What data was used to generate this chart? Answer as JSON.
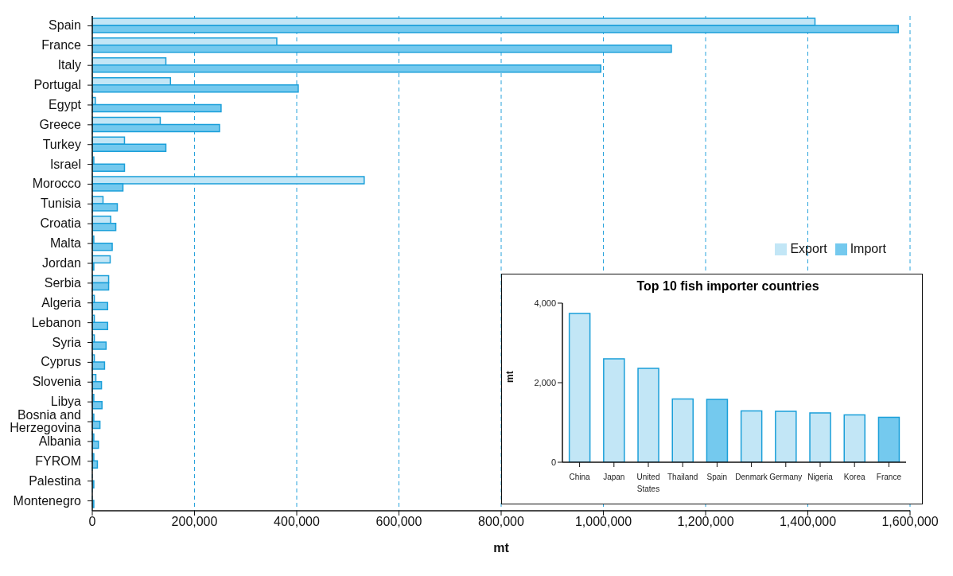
{
  "chart_data": [
    {
      "type": "bar",
      "orientation": "horizontal",
      "xlabel": "mt",
      "categories": [
        "Spain",
        "France",
        "Italy",
        "Portugal",
        "Egypt",
        "Greece",
        "Turkey",
        "Israel",
        "Morocco",
        "Tunisia",
        "Croatia",
        "Malta",
        "Jordan",
        "Serbia",
        "Algeria",
        "Lebanon",
        "Syria",
        "Cyprus",
        "Slovenia",
        "Libya",
        "Bosnia and Herzegovina",
        "Albania",
        "FYROM",
        "Palestina",
        "Montenegro"
      ],
      "series": [
        {
          "name": "Export",
          "color": "#c2e6f6",
          "values": [
            1414000,
            361000,
            144000,
            153000,
            6000,
            133000,
            63000,
            3000,
            532000,
            21000,
            36000,
            3000,
            35000,
            32000,
            4000,
            4000,
            4000,
            4000,
            7000,
            3000,
            3000,
            3000,
            3000,
            null,
            null
          ]
        },
        {
          "name": "Import",
          "color": "#74c9ee",
          "values": [
            1577000,
            1133000,
            995000,
            403000,
            252000,
            249000,
            144000,
            63000,
            60000,
            49000,
            46000,
            39000,
            3000,
            32000,
            30000,
            30000,
            27000,
            24000,
            18000,
            19000,
            15000,
            12000,
            10000,
            3000,
            3000
          ]
        }
      ],
      "xlim": [
        0,
        1600000
      ],
      "xticks": [
        0,
        {
          "value": 200000,
          "label": "200,000"
        },
        {
          "value": 400000,
          "label": "400,000"
        },
        {
          "value": 600000,
          "label": "600,000"
        },
        {
          "value": 800000,
          "label": "800,000"
        },
        {
          "value": 1000000,
          "label": "1,000,000"
        },
        {
          "value": 1200000,
          "label": "1,200,000"
        },
        {
          "value": 1400000,
          "label": "1,400,000"
        },
        {
          "value": 1600000,
          "label": "1,600,000"
        }
      ],
      "grid": "x",
      "legend": "right"
    },
    {
      "type": "bar",
      "title": "Top 10 fish importer countries",
      "ylabel": "mt",
      "categories": [
        "China",
        "Japan",
        "United States",
        "Thailand",
        "Spain",
        "Denmark",
        "Germany",
        "Nigeria",
        "Korea",
        "France"
      ],
      "values": [
        3740,
        2600,
        2360,
        1590,
        1580,
        1290,
        1280,
        1240,
        1190,
        1130
      ],
      "colors": [
        "#c2e6f6",
        "#c2e6f6",
        "#c2e6f6",
        "#c2e6f6",
        "#74c9ee",
        "#c2e6f6",
        "#c2e6f6",
        "#c2e6f6",
        "#c2e6f6",
        "#74c9ee"
      ],
      "ylim": [
        0,
        4000
      ],
      "yticks": [
        0,
        {
          "value": 2000,
          "label": "2,000"
        },
        {
          "value": 4000,
          "label": "4,000"
        }
      ]
    }
  ]
}
